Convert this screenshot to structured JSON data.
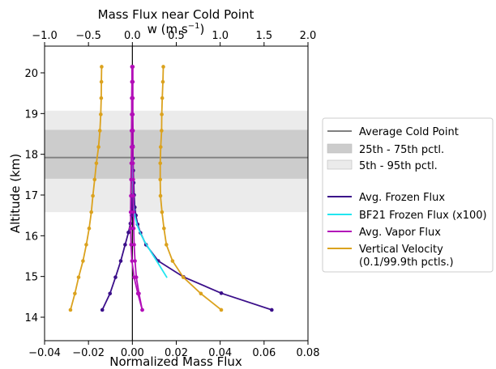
{
  "chart_data": {
    "type": "line",
    "title_line1": "Mass Flux near Cold Point",
    "top_axis_label": "w (m s",
    "top_axis_label_exp": "−1",
    "top_axis_label_close": ")",
    "xlabel": "Normalized Mass Flux",
    "ylabel": "Altitude (km)",
    "xlim": [
      -0.04,
      0.08
    ],
    "ylim": [
      13.55,
      20.6
    ],
    "top_xlim": [
      -1.0,
      2.0
    ],
    "x_ticks": [
      -0.04,
      -0.02,
      0.0,
      0.02,
      0.04,
      0.06,
      0.08
    ],
    "x_tick_labels": [
      "−0.04",
      "−0.02",
      "0.00",
      "0.02",
      "0.04",
      "0.06",
      "0.08"
    ],
    "top_ticks": [
      -1.0,
      -0.5,
      0.0,
      0.5,
      1.0,
      1.5,
      2.0
    ],
    "top_tick_labels": [
      "−1.0",
      "−0.5",
      "0.0",
      "0.5",
      "1.0",
      "1.5",
      "2.0"
    ],
    "y_ticks": [
      14,
      15,
      16,
      17,
      18,
      19,
      20
    ],
    "y_tick_labels": [
      "14",
      "15",
      "16",
      "17",
      "18",
      "19",
      "20"
    ],
    "bands": [
      {
        "label": "5th - 95th pctl.",
        "from": 16.58,
        "to": 19.07,
        "color": "#ebebeb"
      },
      {
        "label": "25th - 75th pctl.",
        "from": 17.4,
        "to": 18.6,
        "color": "#cccccc"
      }
    ],
    "cold_point": {
      "label": "Average Cold Point",
      "value": 17.92,
      "color": "#808080"
    },
    "legend_position": "right, outside plot",
    "series": [
      {
        "name": "Avg. Frozen Flux",
        "color": "#3b0f8a",
        "markers": true,
        "points": [
          [
            0.0635,
            14.18
          ],
          [
            0.0405,
            14.59
          ],
          [
            0.0233,
            14.99
          ],
          [
            0.0118,
            15.38
          ],
          [
            0.0062,
            15.78
          ],
          [
            0.0037,
            16.07
          ],
          [
            0.0024,
            16.28
          ],
          [
            0.0016,
            16.5
          ],
          [
            0.0011,
            16.7
          ],
          [
            0.0008,
            17.0
          ],
          [
            0.0006,
            17.3
          ],
          [
            0.0004,
            17.6
          ],
          [
            0.0003,
            17.9
          ],
          [
            0.0002,
            18.2
          ]
        ]
      },
      {
        "name": "Avg. Frozen Flux (negative)",
        "color": "#3b0f8a",
        "markers": true,
        "points": [
          [
            -0.0137,
            14.18
          ],
          [
            -0.0102,
            14.58
          ],
          [
            -0.0077,
            14.98
          ],
          [
            -0.0053,
            15.38
          ],
          [
            -0.0033,
            15.78
          ],
          [
            -0.0018,
            16.08
          ],
          [
            -0.0009,
            16.3
          ],
          [
            -0.0004,
            16.5
          ],
          [
            -0.0002,
            16.7
          ],
          [
            -0.0001,
            17.0
          ]
        ]
      },
      {
        "name": "BF21 Frozen Flux (x100)",
        "color": "#22e6f0",
        "markers": false,
        "points": [
          [
            0.0158,
            14.97
          ],
          [
            0.0118,
            15.32
          ],
          [
            0.0085,
            15.6
          ],
          [
            0.0058,
            15.84
          ],
          [
            0.0037,
            16.05
          ],
          [
            0.0022,
            16.26
          ],
          [
            0.0012,
            16.47
          ],
          [
            0.0006,
            16.7
          ],
          [
            0.0003,
            17.0
          ],
          [
            0.0002,
            17.4
          ],
          [
            0.0001,
            17.9
          ]
        ]
      },
      {
        "name": "Avg. Vapor Flux",
        "color": "#b20fb8",
        "markers": true,
        "points": [
          [
            0.0045,
            14.18
          ],
          [
            0.0025,
            14.58
          ],
          [
            0.0008,
            14.98
          ],
          [
            -0.0002,
            15.38
          ],
          [
            -0.0006,
            15.78
          ],
          [
            -0.0008,
            16.18
          ],
          [
            -0.0008,
            16.58
          ],
          [
            -0.0007,
            16.98
          ],
          [
            -0.0006,
            17.38
          ],
          [
            -0.0005,
            17.78
          ],
          [
            -0.0004,
            18.18
          ],
          [
            -0.0004,
            18.58
          ],
          [
            -0.0003,
            18.98
          ],
          [
            -0.0003,
            19.38
          ],
          [
            -0.0002,
            19.78
          ],
          [
            -0.0002,
            20.15
          ]
        ]
      },
      {
        "name": "Avg. Vapor Flux (positive)",
        "color": "#b20fb8",
        "markers": true,
        "points": [
          [
            0.0045,
            14.18
          ],
          [
            0.003,
            14.58
          ],
          [
            0.0018,
            14.98
          ],
          [
            0.0012,
            15.38
          ],
          [
            0.0008,
            15.78
          ],
          [
            0.0006,
            16.18
          ],
          [
            0.0005,
            16.58
          ],
          [
            0.0004,
            16.98
          ],
          [
            0.0004,
            17.38
          ],
          [
            0.0003,
            17.78
          ],
          [
            0.0003,
            18.18
          ],
          [
            0.0003,
            18.58
          ],
          [
            0.0002,
            18.98
          ],
          [
            0.0002,
            19.38
          ],
          [
            0.0002,
            19.78
          ],
          [
            0.0002,
            20.15
          ]
        ]
      },
      {
        "name": "Vertical Velocity",
        "label_line2": "(0.1/99.9th pctls.)",
        "color": "#dba21e",
        "markers": true,
        "points": [
          [
            0.0405,
            14.18
          ],
          [
            0.0312,
            14.58
          ],
          [
            0.0232,
            14.98
          ],
          [
            0.0183,
            15.38
          ],
          [
            0.0155,
            15.78
          ],
          [
            0.0144,
            16.18
          ],
          [
            0.0135,
            16.58
          ],
          [
            0.0128,
            16.98
          ],
          [
            0.0127,
            17.38
          ],
          [
            0.0127,
            17.78
          ],
          [
            0.0129,
            18.18
          ],
          [
            0.0133,
            18.58
          ],
          [
            0.0134,
            18.98
          ],
          [
            0.0136,
            19.38
          ],
          [
            0.0139,
            19.78
          ],
          [
            0.0141,
            20.15
          ]
        ]
      },
      {
        "name": "Vertical Velocity (lower)",
        "color": "#dba21e",
        "markers": true,
        "points": [
          [
            -0.0282,
            14.18
          ],
          [
            -0.0262,
            14.58
          ],
          [
            -0.0245,
            14.98
          ],
          [
            -0.0225,
            15.38
          ],
          [
            -0.021,
            15.78
          ],
          [
            -0.0197,
            16.18
          ],
          [
            -0.0187,
            16.58
          ],
          [
            -0.018,
            16.98
          ],
          [
            -0.0172,
            17.38
          ],
          [
            -0.0164,
            17.78
          ],
          [
            -0.0154,
            18.18
          ],
          [
            -0.0148,
            18.58
          ],
          [
            -0.0144,
            18.98
          ],
          [
            -0.0142,
            19.38
          ],
          [
            -0.0141,
            19.78
          ],
          [
            -0.014,
            20.15
          ]
        ]
      }
    ],
    "legend": [
      {
        "kind": "line",
        "label": "Average Cold Point",
        "color": "#808080"
      },
      {
        "kind": "patch",
        "label": "25th - 75th pctl.",
        "color": "#cccccc"
      },
      {
        "kind": "patch",
        "label": "5th - 95th pctl.",
        "color": "#ebebeb"
      },
      {
        "kind": "line",
        "label": "Avg. Frozen Flux",
        "color": "#3b0f8a"
      },
      {
        "kind": "line",
        "label": "BF21 Frozen Flux (x100)",
        "color": "#22e6f0"
      },
      {
        "kind": "line",
        "label": "Avg. Vapor Flux",
        "color": "#b20fb8"
      },
      {
        "kind": "line",
        "label": "Vertical Velocity",
        "label2": "(0.1/99.9th pctls.)",
        "color": "#dba21e"
      }
    ]
  }
}
